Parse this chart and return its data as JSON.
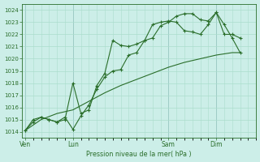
{
  "background_color": "#cceee8",
  "grid_color": "#aaddcc",
  "line_color": "#2a6e2a",
  "marker_color": "#2a6e2a",
  "xlabel_text": "Pression niveau de la mer( hPa )",
  "ylim": [
    1013.5,
    1024.5
  ],
  "day_labels": [
    "Ven",
    "Lun",
    "Sam",
    "Dim"
  ],
  "day_positions": [
    0,
    3,
    9,
    12
  ],
  "vline_color": "#557799",
  "xlim": [
    -0.2,
    14.5
  ],
  "series1_x": [
    0,
    0.5,
    1.0,
    1.5,
    2.0,
    2.5,
    3.0,
    3.5,
    4.0,
    4.5,
    5.0,
    5.5,
    6.0,
    6.5,
    7.0,
    7.5,
    8.0,
    8.5,
    9.0,
    9.5,
    10.0,
    10.5,
    11.0,
    11.5,
    12.0,
    12.5,
    13.0,
    13.5
  ],
  "series1_y": [
    1014.1,
    1014.8,
    1015.2,
    1015.0,
    1014.8,
    1015.2,
    1014.2,
    1015.3,
    1016.2,
    1017.5,
    1018.5,
    1019.0,
    1019.1,
    1020.3,
    1020.5,
    1021.5,
    1021.7,
    1022.7,
    1023.0,
    1023.5,
    1023.7,
    1023.7,
    1023.2,
    1023.1,
    1023.8,
    1022.8,
    1021.7,
    1020.5
  ],
  "series2_x": [
    0,
    0.5,
    1.0,
    1.5,
    2.0,
    2.5,
    3.0,
    3.5,
    4.0,
    4.5,
    5.0,
    5.5,
    6.0,
    6.5,
    7.0,
    7.5,
    8.0,
    8.5,
    9.0,
    9.5,
    10.0,
    10.5,
    11.0,
    11.5,
    12.0,
    12.5,
    13.0,
    13.5
  ],
  "series2_y": [
    1014.1,
    1015.0,
    1015.2,
    1015.0,
    1014.8,
    1015.0,
    1018.0,
    1015.5,
    1015.8,
    1017.8,
    1018.8,
    1021.5,
    1021.1,
    1021.0,
    1021.2,
    1021.5,
    1022.8,
    1023.0,
    1023.1,
    1023.0,
    1022.3,
    1022.2,
    1022.0,
    1022.8,
    1023.8,
    1022.0,
    1022.0,
    1021.7
  ],
  "series3_x": [
    0,
    1.0,
    2.0,
    3.0,
    4.0,
    5.0,
    6.0,
    7.0,
    8.0,
    9.0,
    10.0,
    11.0,
    12.0,
    13.0,
    13.5
  ],
  "series3_y": [
    1014.1,
    1015.0,
    1015.5,
    1015.8,
    1016.5,
    1017.2,
    1017.8,
    1018.3,
    1018.8,
    1019.3,
    1019.7,
    1020.0,
    1020.3,
    1020.5,
    1020.5
  ]
}
